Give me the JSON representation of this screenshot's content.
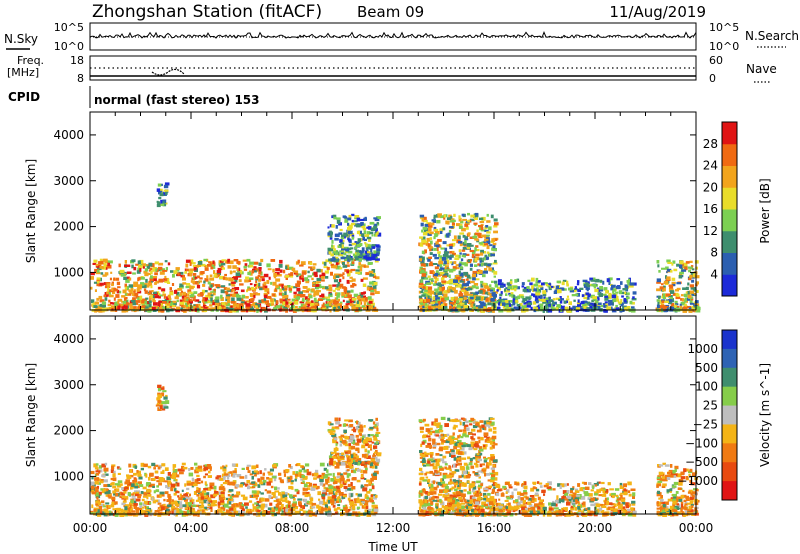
{
  "header": {
    "station": "Zhongshan Station (fitACF)",
    "beam": "Beam 09",
    "date": "11/Aug/2019"
  },
  "top_panels": {
    "nsky": {
      "label": "N.Sky",
      "left_ticks": [
        "10^5",
        "10^0"
      ],
      "right_label": "N.Search",
      "right_ticks": [
        "10^5",
        "10^0"
      ]
    },
    "freq": {
      "label_lines": [
        "Freq.",
        "[MHz]"
      ],
      "left_ticks": [
        "18",
        "8"
      ],
      "right_label": "Nave",
      "right_ticks": [
        "60",
        "0"
      ]
    },
    "cpid": {
      "label": "CPID",
      "text": "normal (fast stereo) 153"
    }
  },
  "chart_data": [
    {
      "type": "heatmap",
      "quantity": "Power",
      "ylabel": "Slant Range [km]",
      "xlabel": "",
      "xlim_hours": [
        0,
        24
      ],
      "ylim": [
        180,
        4500
      ],
      "yticks": [
        1000,
        2000,
        3000,
        4000
      ],
      "colorbar": {
        "label": "Power [dB]",
        "ticks": [
          "4",
          "8",
          "12",
          "16",
          "20",
          "24",
          "28"
        ],
        "colors": [
          "#1c2ad8",
          "#2b5fb0",
          "#3e8e6e",
          "#7ccf52",
          "#e9dd2a",
          "#f2a41c",
          "#f06a12",
          "#e01414"
        ]
      },
      "echo_regions": [
        {
          "start_h": 0.0,
          "end_h": 11.3,
          "range_min": 200,
          "range_max": 1300,
          "level": "high"
        },
        {
          "start_h": 2.6,
          "end_h": 3.0,
          "range_min": 2500,
          "range_max": 3050,
          "level": "low"
        },
        {
          "start_h": 9.4,
          "end_h": 11.4,
          "range_min": 1300,
          "range_max": 2300,
          "level": "low"
        },
        {
          "start_h": 13.0,
          "end_h": 16.0,
          "range_min": 200,
          "range_max": 2300,
          "level": "mid"
        },
        {
          "start_h": 16.0,
          "end_h": 21.5,
          "range_min": 200,
          "range_max": 900,
          "level": "low"
        },
        {
          "start_h": 22.4,
          "end_h": 24.0,
          "range_min": 200,
          "range_max": 1300,
          "level": "mid"
        }
      ]
    },
    {
      "type": "heatmap",
      "quantity": "Velocity",
      "ylabel": "Slant Range [km]",
      "xlabel": "Time UT",
      "xticks": [
        "00:00",
        "04:00",
        "08:00",
        "12:00",
        "16:00",
        "20:00",
        "00:00"
      ],
      "xlim_hours": [
        0,
        24
      ],
      "ylim": [
        180,
        4500
      ],
      "yticks": [
        1000,
        2000,
        3000,
        4000
      ],
      "colorbar": {
        "label": "Velocity [m s^-1]",
        "ticks": [
          "1000",
          "500",
          "100",
          "25",
          "−25",
          "−100",
          "−500",
          "−1000"
        ],
        "colors": [
          "#1a33cc",
          "#2e63b4",
          "#3f8e6e",
          "#86cd4a",
          "#bebebe",
          "#f4b416",
          "#f07a12",
          "#e84a10",
          "#e01414"
        ]
      },
      "echo_regions": [
        {
          "start_h": 0.0,
          "end_h": 11.3,
          "range_min": 200,
          "range_max": 1300,
          "level": "negative"
        },
        {
          "start_h": 2.6,
          "end_h": 3.0,
          "range_min": 2500,
          "range_max": 3050,
          "level": "negative"
        },
        {
          "start_h": 9.4,
          "end_h": 11.4,
          "range_min": 1300,
          "range_max": 2300,
          "level": "negative"
        },
        {
          "start_h": 13.0,
          "end_h": 16.0,
          "range_min": 200,
          "range_max": 2300,
          "level": "negative"
        },
        {
          "start_h": 16.0,
          "end_h": 21.5,
          "range_min": 200,
          "range_max": 900,
          "level": "negative"
        },
        {
          "start_h": 22.4,
          "end_h": 24.0,
          "range_min": 200,
          "range_max": 1300,
          "level": "negative"
        }
      ]
    }
  ]
}
